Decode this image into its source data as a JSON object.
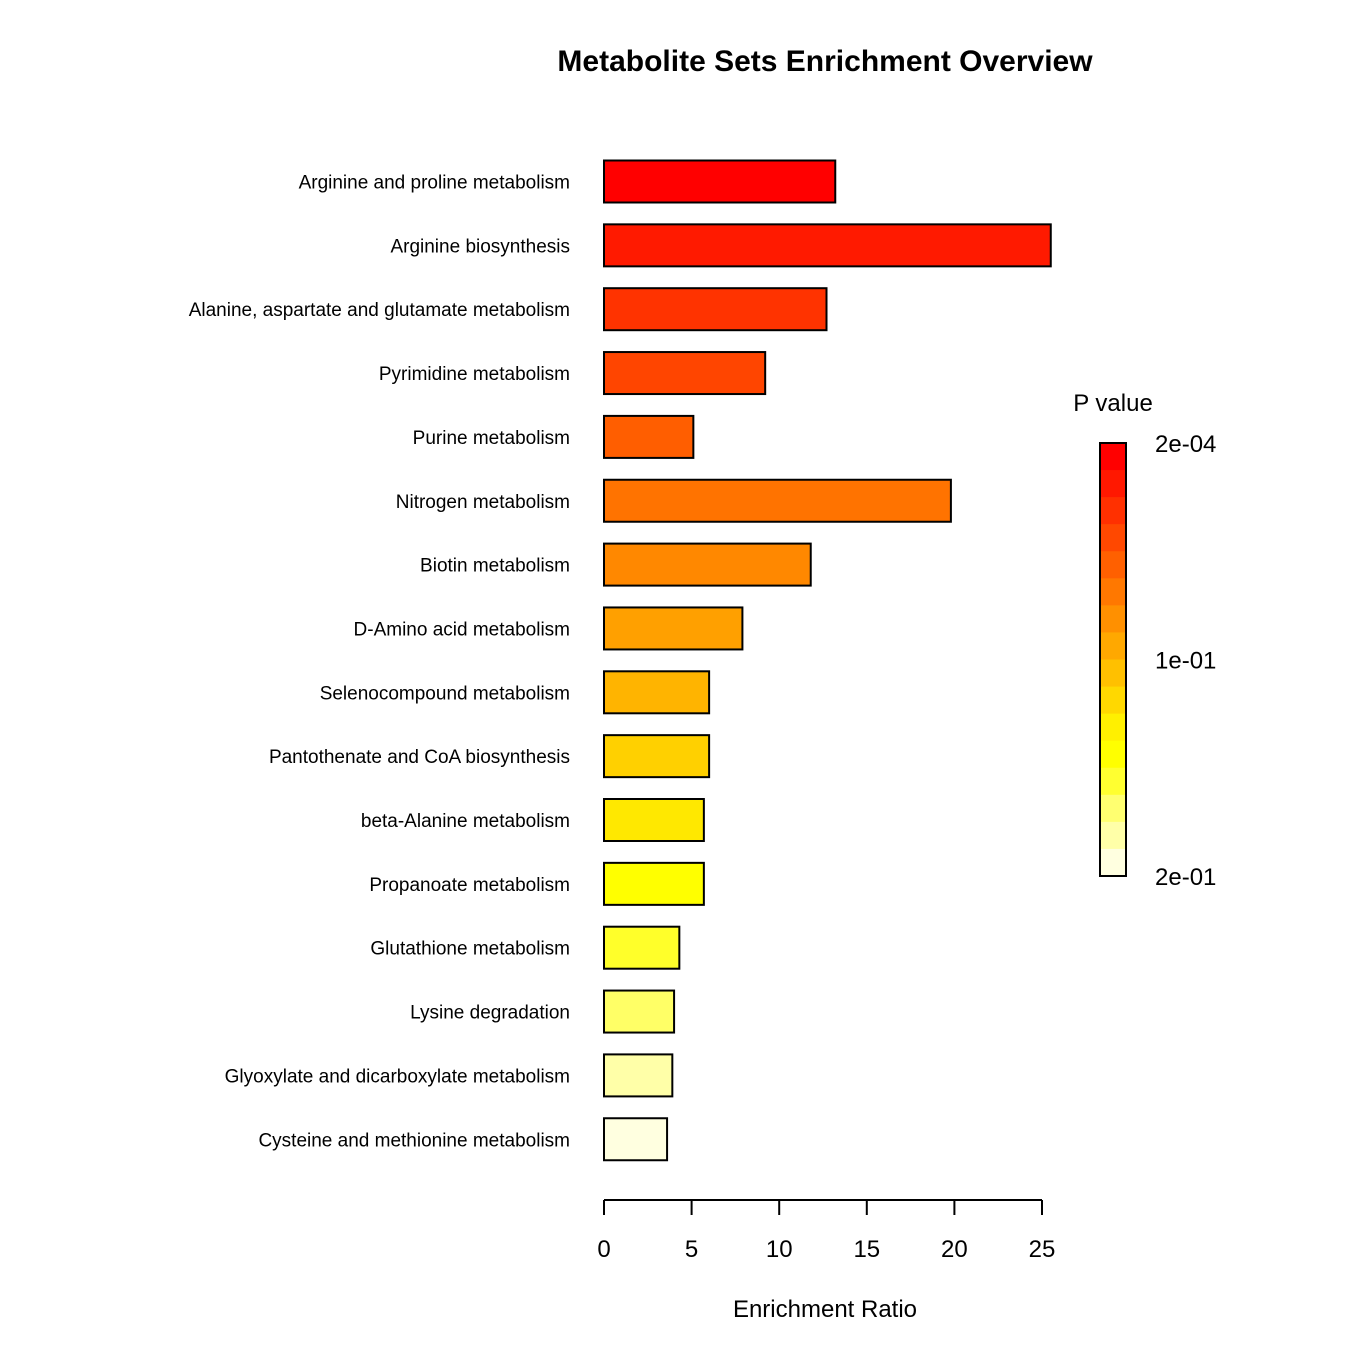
{
  "chart_data": {
    "type": "bar",
    "orientation": "horizontal",
    "title": "Metabolite Sets Enrichment Overview",
    "xlabel": "Enrichment Ratio",
    "ylabel": "",
    "xlim": [
      0,
      25
    ],
    "xticks": [
      "0",
      "5",
      "10",
      "15",
      "20",
      "25"
    ],
    "categories": [
      "Arginine and proline metabolism",
      "Arginine biosynthesis",
      "Alanine, aspartate and glutamate metabolism",
      "Pyrimidine metabolism",
      "Purine metabolism",
      "Nitrogen metabolism",
      "Biotin metabolism",
      "D-Amino acid metabolism",
      "Selenocompound metabolism",
      "Pantothenate and CoA biosynthesis",
      "beta-Alanine metabolism",
      "Propanoate metabolism",
      "Glutathione metabolism",
      "Lysine degradation",
      "Glyoxylate and dicarboxylate metabolism",
      "Cysteine and methionine metabolism"
    ],
    "values": [
      13.2,
      25.5,
      12.7,
      9.2,
      5.1,
      19.8,
      11.8,
      7.9,
      6.0,
      6.0,
      5.7,
      5.7,
      4.3,
      4.0,
      3.9,
      3.6
    ],
    "colors": [
      "#FF0000",
      "#FF1A00",
      "#FF3300",
      "#FF4500",
      "#FF5E00",
      "#FF7300",
      "#FF8800",
      "#FFA000",
      "#FFB400",
      "#FFD000",
      "#FFE800",
      "#FFFF00",
      "#FFFF2A",
      "#FFFF66",
      "#FFFFA8",
      "#FFFFE0"
    ],
    "legend": {
      "title": "P value",
      "placement": "right",
      "labels": [
        "2e-04",
        "1e-01",
        "2e-01"
      ],
      "gradient": [
        "#FF0000",
        "#FF1800",
        "#FF3000",
        "#FF4800",
        "#FF6000",
        "#FF7800",
        "#FF9000",
        "#FFA800",
        "#FFC000",
        "#FFD800",
        "#FFF000",
        "#FFFF00",
        "#FFFF30",
        "#FFFF70",
        "#FFFFA8",
        "#FFFFE0"
      ]
    }
  }
}
